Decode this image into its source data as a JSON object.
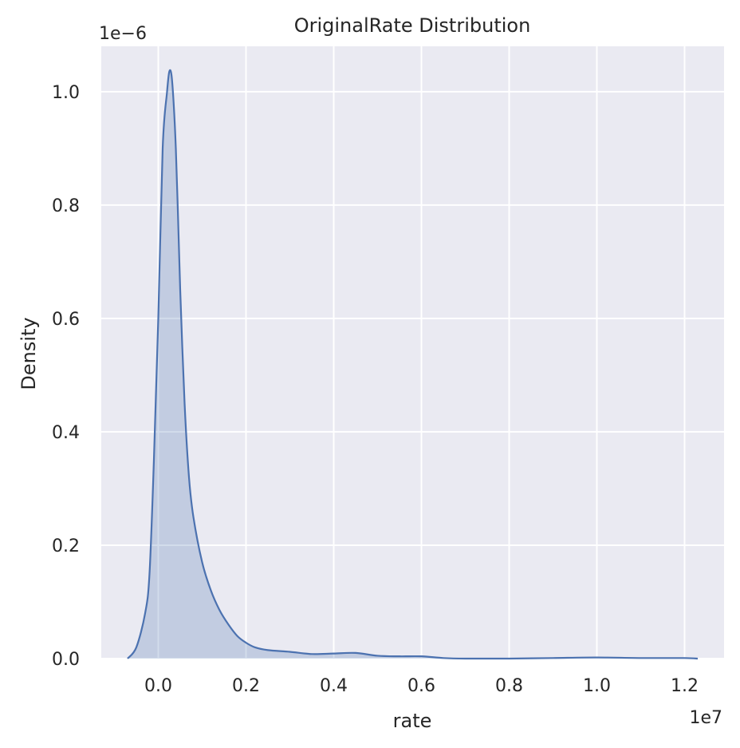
{
  "chart_data": {
    "type": "area",
    "title": "OriginalRate Distribution",
    "xlabel": "rate",
    "ylabel": "Density",
    "x_offset_text": "1e7",
    "y_offset_text": "1e−6",
    "xlim": [
      -0.13,
      1.29
    ],
    "ylim": [
      0,
      1.08
    ],
    "x_ticks": [
      0.0,
      0.2,
      0.4,
      0.6,
      0.8,
      1.0,
      1.2
    ],
    "x_tick_labels": [
      "0.0",
      "0.2",
      "0.4",
      "0.6",
      "0.8",
      "1.0",
      "1.2"
    ],
    "y_ticks": [
      0.0,
      0.2,
      0.4,
      0.6,
      0.8,
      1.0
    ],
    "y_tick_labels": [
      "0.0",
      "0.2",
      "0.4",
      "0.6",
      "0.8",
      "1.0"
    ],
    "grid": true,
    "colors": {
      "background": "#eaeaf2",
      "line": "#4c72b0",
      "fill": "#4c72b0",
      "grid": "#ffffff"
    },
    "series": [
      {
        "x": [
          -0.07,
          -0.05,
          -0.03,
          -0.02,
          -0.01,
          0.0,
          0.01,
          0.02,
          0.025,
          0.03,
          0.035,
          0.04,
          0.045,
          0.05,
          0.06,
          0.07,
          0.08,
          0.1,
          0.12,
          0.14,
          0.16,
          0.18,
          0.2,
          0.22,
          0.25,
          0.3,
          0.35,
          0.4,
          0.45,
          0.5,
          0.55,
          0.6,
          0.65,
          0.7,
          0.8,
          0.9,
          1.0,
          1.1,
          1.2,
          1.23
        ],
        "y": [
          0.0,
          0.02,
          0.08,
          0.15,
          0.35,
          0.6,
          0.9,
          1.0,
          1.035,
          1.03,
          0.98,
          0.9,
          0.78,
          0.65,
          0.45,
          0.32,
          0.25,
          0.17,
          0.12,
          0.085,
          0.06,
          0.04,
          0.028,
          0.02,
          0.015,
          0.012,
          0.008,
          0.009,
          0.01,
          0.005,
          0.004,
          0.004,
          0.001,
          0.0,
          0.0,
          0.001,
          0.002,
          0.001,
          0.001,
          0.0
        ]
      }
    ]
  }
}
